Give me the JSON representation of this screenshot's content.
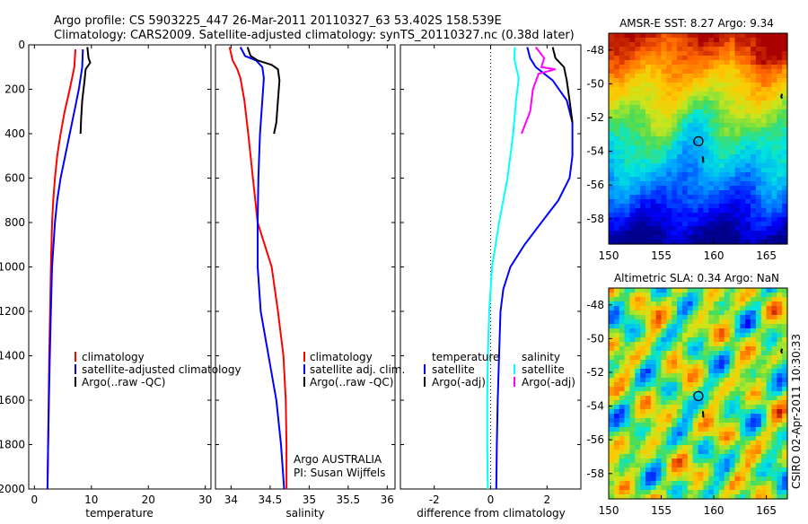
{
  "title": {
    "line1": "Argo profile: CS 5903225_447 26-Mar-2011 20110327_63 53.402S 158.539E",
    "line2": "Climatology: CARS2009. Satellite-adjusted climatology: synTS_20110327.nc (0.38d later)"
  },
  "colors": {
    "climatology": "#ff0000",
    "satellite": "#0000ff",
    "argo": "#000000",
    "satellite_salinity": "#00ffff",
    "argo_salinity": "#ff00ff"
  },
  "chart_data": [
    {
      "type": "line",
      "id": "temperature",
      "xlabel": "temperature",
      "ylabel": "",
      "xlim": [
        -1,
        31
      ],
      "ylim": [
        2000,
        0
      ],
      "xticks": [
        0,
        10,
        20,
        30
      ],
      "yticks": [
        0,
        200,
        400,
        600,
        800,
        1000,
        1200,
        1400,
        1600,
        1800,
        2000
      ],
      "series": [
        {
          "name": "climatology",
          "color": "#ff0000",
          "points": [
            [
              7.2,
              20
            ],
            [
              7.0,
              100
            ],
            [
              6.2,
              200
            ],
            [
              5.3,
              300
            ],
            [
              4.6,
              400
            ],
            [
              4.0,
              500
            ],
            [
              3.6,
              600
            ],
            [
              3.3,
              700
            ],
            [
              3.1,
              800
            ],
            [
              2.9,
              1000
            ],
            [
              2.75,
              1200
            ],
            [
              2.6,
              1400
            ],
            [
              2.5,
              1600
            ],
            [
              2.4,
              1800
            ],
            [
              2.3,
              2000
            ]
          ]
        },
        {
          "name": "satellite-adjusted climatology",
          "color": "#0000ff",
          "points": [
            [
              8.5,
              20
            ],
            [
              8.4,
              100
            ],
            [
              7.8,
              200
            ],
            [
              7.0,
              300
            ],
            [
              6.2,
              400
            ],
            [
              5.4,
              500
            ],
            [
              4.6,
              600
            ],
            [
              4.0,
              700
            ],
            [
              3.6,
              800
            ],
            [
              3.1,
              1000
            ],
            [
              2.9,
              1200
            ],
            [
              2.7,
              1400
            ],
            [
              2.55,
              1600
            ],
            [
              2.4,
              1800
            ],
            [
              2.3,
              2000
            ]
          ]
        },
        {
          "name": "Argo(..raw -QC)",
          "color": "#000000",
          "points": [
            [
              9.3,
              10
            ],
            [
              9.5,
              60
            ],
            [
              9.8,
              80
            ],
            [
              9.0,
              110
            ],
            [
              8.8,
              160
            ],
            [
              8.4,
              250
            ],
            [
              8.2,
              330
            ],
            [
              8.1,
              400
            ]
          ]
        }
      ],
      "legend_items": [
        "climatology",
        "satellite-adjusted climatology",
        "Argo(..raw -QC)"
      ]
    },
    {
      "type": "line",
      "id": "salinity",
      "xlabel": "salinity",
      "ylabel": "",
      "xlim": [
        33.8,
        36.1
      ],
      "ylim": [
        2000,
        0
      ],
      "xticks": [
        34,
        34.5,
        35,
        35.5,
        36
      ],
      "series": [
        {
          "name": "climatology",
          "color": "#ff0000",
          "points": [
            [
              33.98,
              10
            ],
            [
              34.02,
              70
            ],
            [
              34.08,
              110
            ],
            [
              34.12,
              150
            ],
            [
              34.17,
              250
            ],
            [
              34.22,
              400
            ],
            [
              34.28,
              600
            ],
            [
              34.34,
              800
            ],
            [
              34.43,
              900
            ],
            [
              34.52,
              1000
            ],
            [
              34.6,
              1200
            ],
            [
              34.67,
              1400
            ],
            [
              34.7,
              1600
            ],
            [
              34.71,
              1800
            ],
            [
              34.71,
              2000
            ]
          ]
        },
        {
          "name": "satellite adj. clim.",
          "color": "#0000ff",
          "points": [
            [
              34.12,
              10
            ],
            [
              34.18,
              50
            ],
            [
              34.32,
              70
            ],
            [
              34.4,
              100
            ],
            [
              34.42,
              150
            ],
            [
              34.4,
              250
            ],
            [
              34.37,
              400
            ],
            [
              34.35,
              600
            ],
            [
              34.34,
              800
            ],
            [
              34.34,
              1000
            ],
            [
              34.38,
              1200
            ],
            [
              34.48,
              1400
            ],
            [
              34.58,
              1600
            ],
            [
              34.64,
              1800
            ],
            [
              34.68,
              2000
            ]
          ]
        },
        {
          "name": "Argo(..raw -QC)",
          "color": "#000000",
          "points": [
            [
              34.21,
              10
            ],
            [
              34.25,
              50
            ],
            [
              34.34,
              70
            ],
            [
              34.52,
              90
            ],
            [
              34.6,
              110
            ],
            [
              34.62,
              160
            ],
            [
              34.6,
              250
            ],
            [
              34.58,
              350
            ],
            [
              34.55,
              400
            ]
          ]
        }
      ],
      "legend_items": [
        "climatology",
        "satellite adj. clim.",
        "Argo(..raw -QC)"
      ],
      "annotation": [
        "Argo AUSTRALIA",
        "PI: Susan Wijffels"
      ]
    },
    {
      "type": "line",
      "id": "difference",
      "xlabel": "difference from climatology",
      "ylabel": "",
      "xlim": [
        -3.2,
        3.2
      ],
      "ylim": [
        2000,
        0
      ],
      "xticks": [
        -2,
        0,
        2
      ],
      "series": [
        {
          "name": "temperature satellite",
          "color": "#0000ff",
          "points": [
            [
              1.3,
              10
            ],
            [
              1.4,
              60
            ],
            [
              1.6,
              100
            ],
            [
              2.2,
              160
            ],
            [
              2.7,
              250
            ],
            [
              2.9,
              350
            ],
            [
              2.9,
              500
            ],
            [
              2.8,
              600
            ],
            [
              2.4,
              700
            ],
            [
              1.8,
              800
            ],
            [
              1.2,
              900
            ],
            [
              0.7,
              1000
            ],
            [
              0.45,
              1100
            ],
            [
              0.35,
              1200
            ],
            [
              0.3,
              1400
            ],
            [
              0.25,
              1600
            ],
            [
              0.22,
              1800
            ],
            [
              0.2,
              2000
            ]
          ]
        },
        {
          "name": "temperature Argo(-adj)",
          "color": "#000000",
          "points": [
            [
              2.2,
              10
            ],
            [
              2.3,
              60
            ],
            [
              2.6,
              100
            ],
            [
              2.7,
              160
            ],
            [
              2.8,
              250
            ],
            [
              2.9,
              350
            ]
          ]
        },
        {
          "name": "salinity satellite",
          "color": "#00ffff",
          "points": [
            [
              0.86,
              10
            ],
            [
              0.84,
              60
            ],
            [
              0.9,
              100
            ],
            [
              1.0,
              150
            ],
            [
              0.9,
              250
            ],
            [
              0.8,
              400
            ],
            [
              0.6,
              600
            ],
            [
              0.3,
              800
            ],
            [
              0.05,
              1000
            ],
            [
              -0.05,
              1200
            ],
            [
              -0.1,
              1400
            ],
            [
              -0.12,
              1600
            ],
            [
              -0.12,
              1800
            ],
            [
              -0.1,
              2000
            ]
          ]
        },
        {
          "name": "salinity Argo(-adj)",
          "color": "#ff00ff",
          "points": [
            [
              1.6,
              10
            ],
            [
              1.9,
              60
            ],
            [
              1.8,
              100
            ],
            [
              2.3,
              110
            ],
            [
              1.7,
              130
            ],
            [
              1.5,
              200
            ],
            [
              1.4,
              300
            ],
            [
              1.1,
              400
            ]
          ]
        }
      ],
      "legend": {
        "temperature_header": "temperature",
        "salinity_header": "salinity",
        "satellite": "satellite",
        "argo": "Argo(-adj)"
      }
    },
    {
      "type": "heatmap",
      "id": "sst-map",
      "title": "AMSR-E SST: 8.27 Argo: 9.34",
      "xlim": [
        150,
        167
      ],
      "ylim": [
        -59.5,
        -47
      ],
      "xticks": [
        150,
        155,
        160,
        165
      ],
      "yticks": [
        -48,
        -50,
        -52,
        -54,
        -56,
        -58
      ],
      "profile_location": {
        "lon": 158.539,
        "lat": -53.402
      }
    },
    {
      "type": "heatmap",
      "id": "sla-map",
      "title": "Altimetric SLA: 0.34 Argo: NaN",
      "xlim": [
        150,
        167
      ],
      "ylim": [
        -59.5,
        -47
      ],
      "xticks": [
        150,
        155,
        160,
        165
      ],
      "yticks": [
        -48,
        -50,
        -52,
        -54,
        -56,
        -58
      ],
      "profile_location": {
        "lon": 158.539,
        "lat": -53.402
      }
    }
  ],
  "credit": "CSIRO 02-Apr-2011 10:30:33"
}
